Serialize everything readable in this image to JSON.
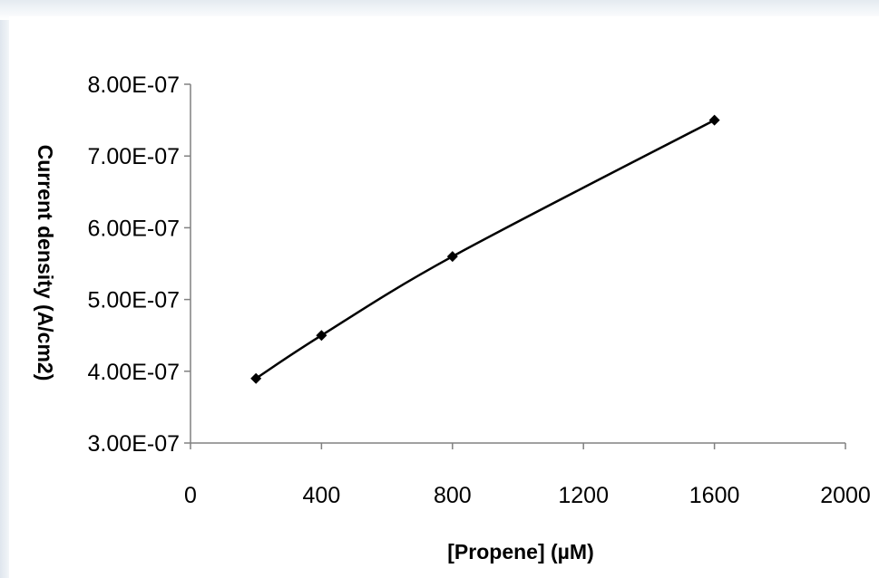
{
  "chart_data": {
    "type": "scatter",
    "title": "",
    "xlabel": "[Propene] (µM)",
    "ylabel": "Current density (A/cm2)",
    "xlim": [
      0,
      2000
    ],
    "ylim": [
      3e-07,
      8e-07
    ],
    "x_ticks": [
      0,
      400,
      800,
      1200,
      1600,
      2000
    ],
    "x_tick_labels": [
      "0",
      "400",
      "800",
      "1200",
      "1600",
      "2000"
    ],
    "y_ticks": [
      3e-07,
      4e-07,
      5e-07,
      6e-07,
      7e-07,
      8e-07
    ],
    "y_tick_labels": [
      "3.00E-07",
      "4.00E-07",
      "5.00E-07",
      "6.00E-07",
      "7.00E-07",
      "8.00E-07"
    ],
    "grid": false,
    "series": [
      {
        "x": [
          200,
          400,
          800,
          1600
        ],
        "y": [
          3.9e-07,
          4.5e-07,
          5.6e-07,
          7.5e-07
        ],
        "marker": "diamond",
        "line": "smooth",
        "color": "#000000"
      }
    ]
  }
}
